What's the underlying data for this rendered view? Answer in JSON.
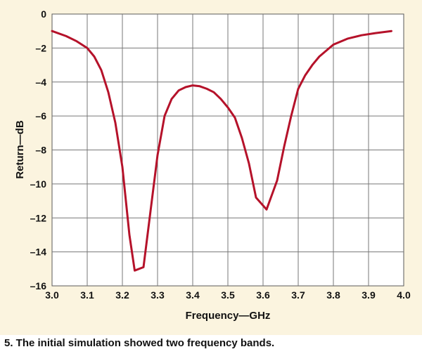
{
  "chart_data": {
    "type": "line",
    "title": "",
    "xlabel": "Frequency—GHz",
    "ylabel": "Return—dB",
    "xlim": [
      3.0,
      4.0
    ],
    "ylim": [
      -16,
      0
    ],
    "xticks": [
      3.0,
      3.1,
      3.2,
      3.3,
      3.4,
      3.5,
      3.6,
      3.7,
      3.8,
      3.9,
      4.0
    ],
    "xtick_labels": [
      "3.0",
      "3.1",
      "3.2",
      "3.3",
      "3.4",
      "3.5",
      "3.6",
      "3.7",
      "3.8",
      "3.9",
      "4.0"
    ],
    "yticks": [
      0,
      -2,
      -4,
      -6,
      -8,
      -10,
      -12,
      -14,
      -16
    ],
    "ytick_labels": [
      "0",
      "–2",
      "–4",
      "–6",
      "–8",
      "–10",
      "–12",
      "–14",
      "–16"
    ],
    "grid": true,
    "line_color": "#b5122a",
    "series": [
      {
        "x": [
          3.0,
          3.04,
          3.07,
          3.1,
          3.12,
          3.14,
          3.16,
          3.18,
          3.2,
          3.22,
          3.235,
          3.26,
          3.28,
          3.3,
          3.32,
          3.34,
          3.36,
          3.38,
          3.4,
          3.42,
          3.44,
          3.46,
          3.48,
          3.5,
          3.52,
          3.54,
          3.56,
          3.58,
          3.61,
          3.64,
          3.66,
          3.68,
          3.7,
          3.72,
          3.74,
          3.76,
          3.78,
          3.8,
          3.84,
          3.88,
          3.92,
          3.965
        ],
        "y": [
          -1.0,
          -1.3,
          -1.6,
          -2.0,
          -2.5,
          -3.3,
          -4.6,
          -6.4,
          -9.0,
          -13.0,
          -15.1,
          -14.9,
          -11.6,
          -8.3,
          -6.0,
          -5.0,
          -4.5,
          -4.3,
          -4.2,
          -4.25,
          -4.4,
          -4.6,
          -5.0,
          -5.5,
          -6.1,
          -7.3,
          -8.8,
          -10.8,
          -11.5,
          -9.8,
          -7.8,
          -6.0,
          -4.4,
          -3.6,
          -3.0,
          -2.5,
          -2.15,
          -1.8,
          -1.45,
          -1.25,
          -1.12,
          -1.0
        ]
      }
    ]
  },
  "caption": "5. The initial simulation showed two frequency bands."
}
